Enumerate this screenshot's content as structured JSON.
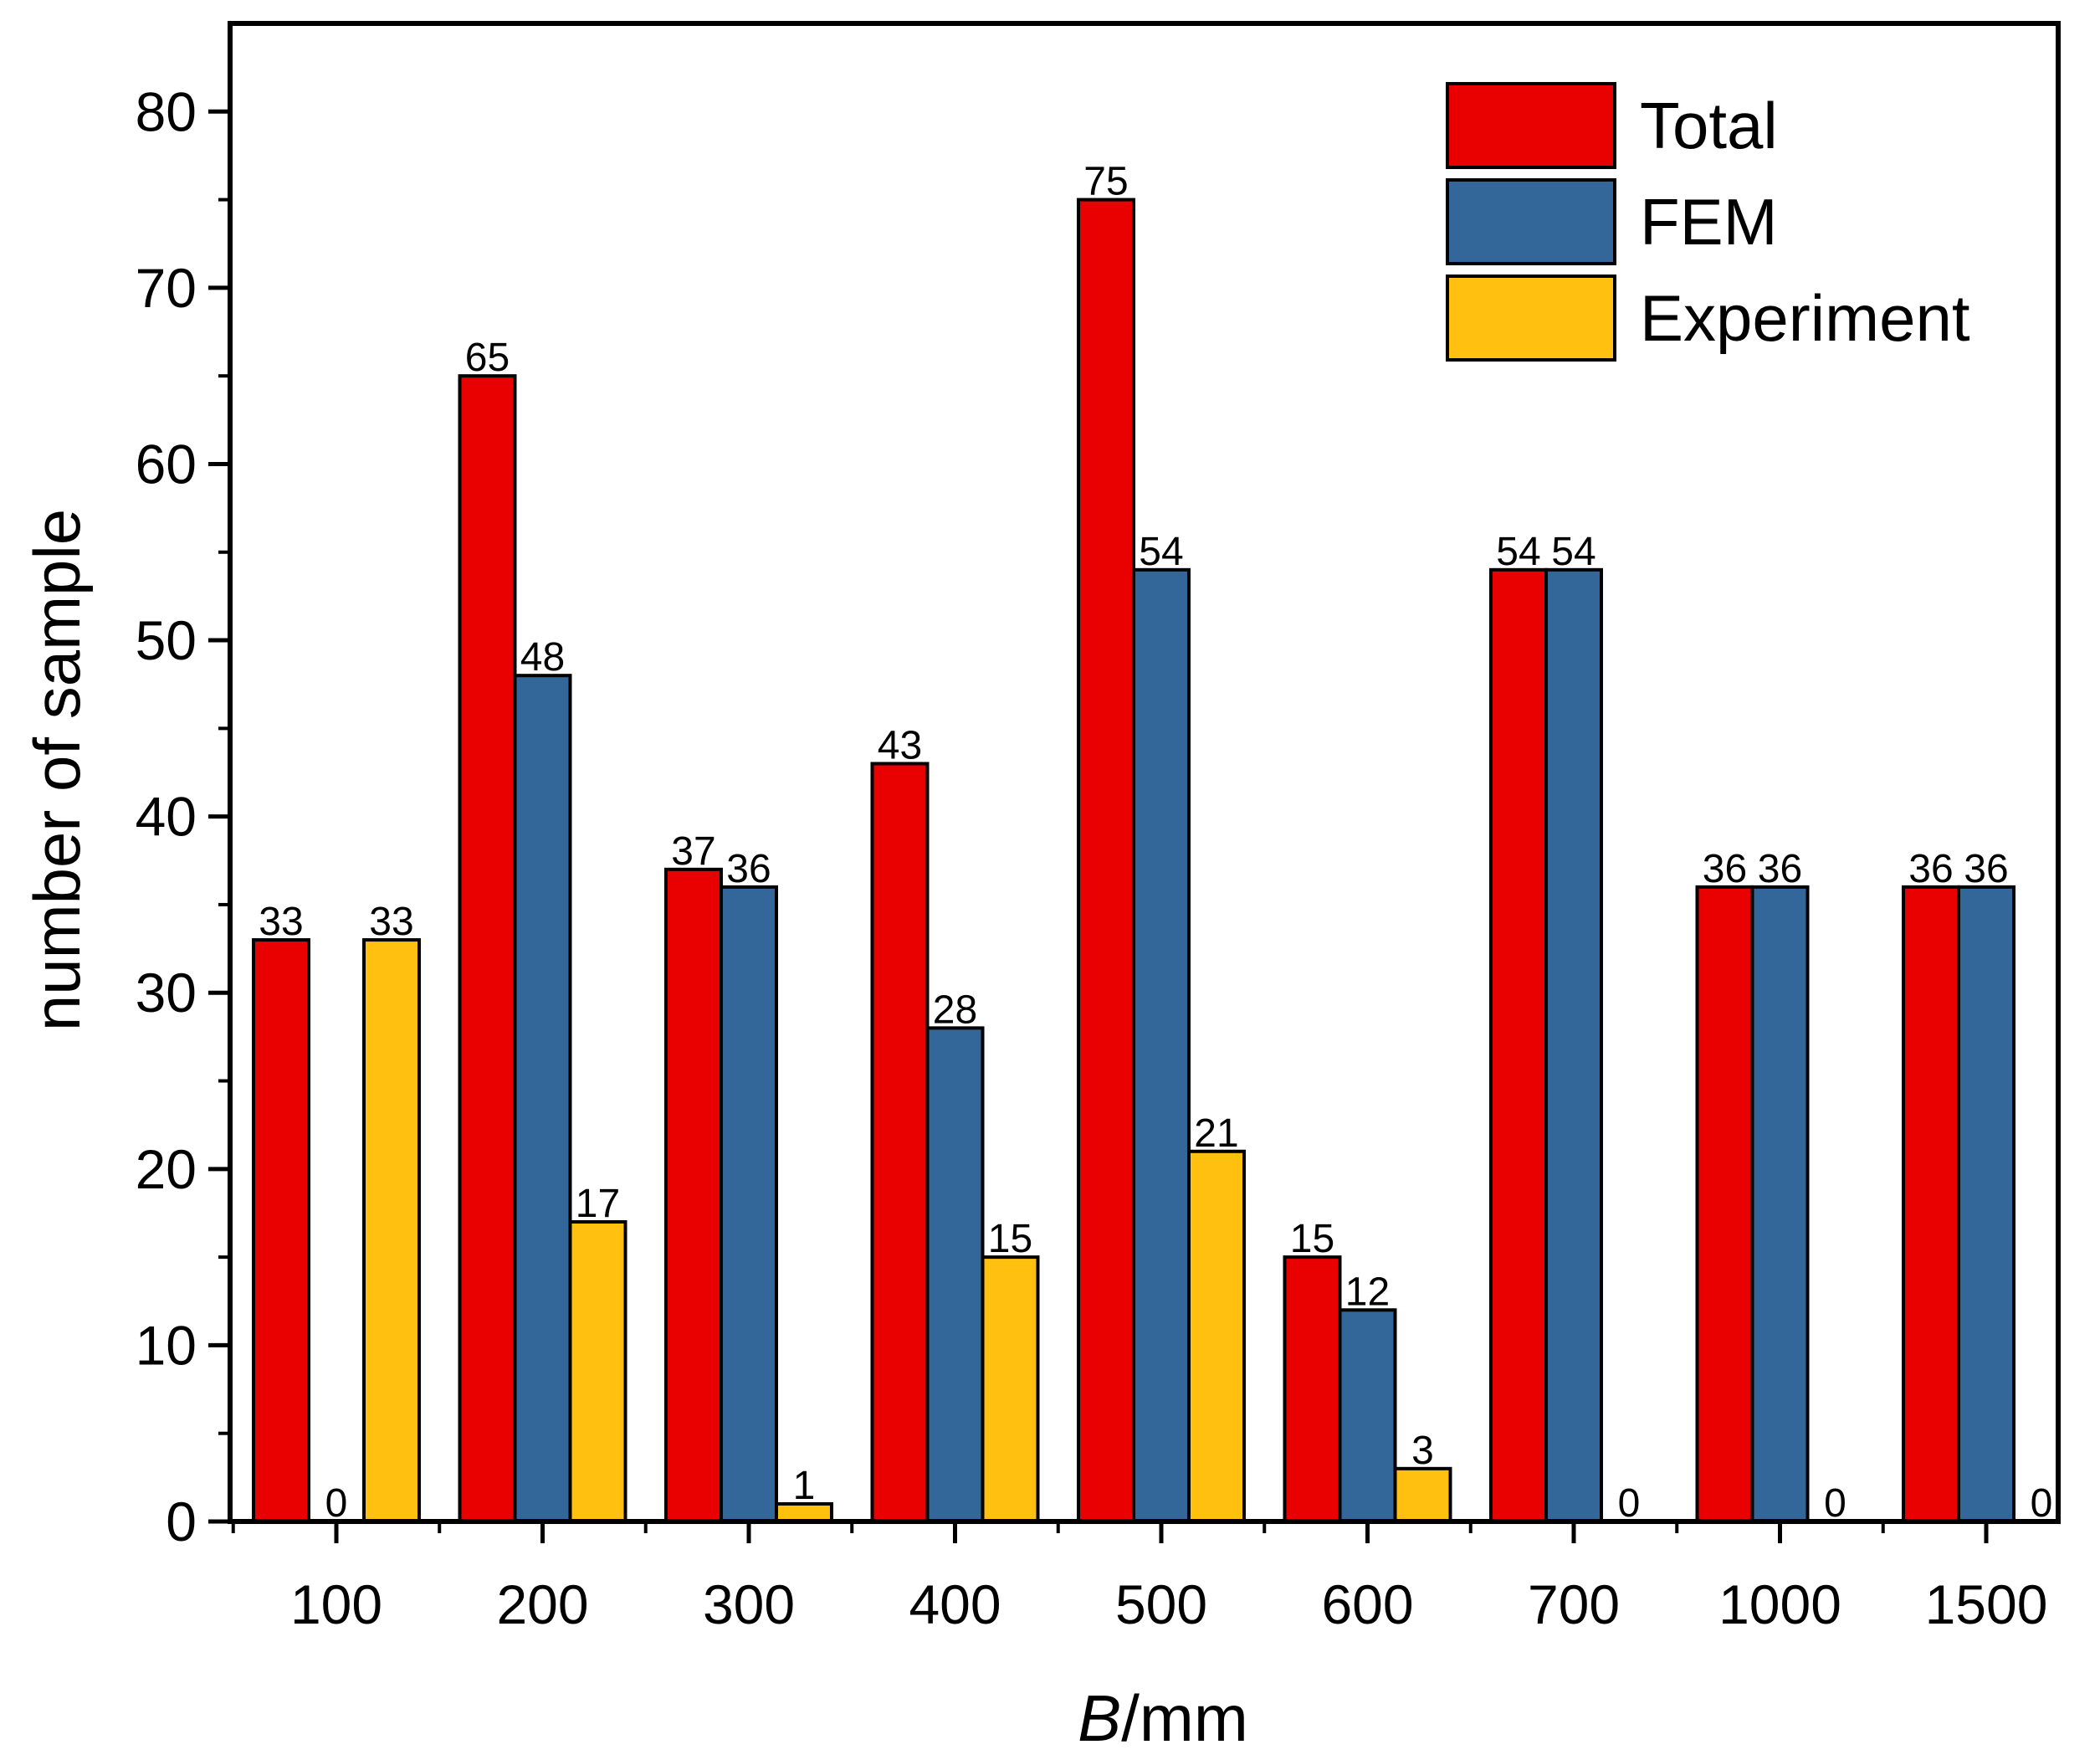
{
  "chart_data": {
    "type": "bar",
    "title": "",
    "xlabel": "B/mm",
    "xlabel_italic_part": "B",
    "xlabel_rest": "/mm",
    "ylabel": "number of sample",
    "ylim": [
      0,
      85
    ],
    "y_ticks": [
      0,
      10,
      20,
      30,
      40,
      50,
      60,
      70,
      80
    ],
    "categories": [
      "100",
      "200",
      "300",
      "400",
      "500",
      "600",
      "700",
      "1000",
      "1500"
    ],
    "series": [
      {
        "name": "Total",
        "color": "#e90000",
        "values": [
          33,
          65,
          37,
          43,
          75,
          15,
          54,
          36,
          36
        ]
      },
      {
        "name": "FEM",
        "color": "#336699",
        "values": [
          0,
          48,
          36,
          28,
          54,
          12,
          54,
          36,
          36
        ]
      },
      {
        "name": "Experiment",
        "color": "#ffc010",
        "values": [
          33,
          17,
          1,
          15,
          21,
          3,
          0,
          0,
          0
        ]
      }
    ],
    "visible_data_labels": {
      "Total": [
        33,
        65,
        37,
        43,
        75,
        15,
        54,
        36,
        36
      ],
      "FEM": [
        0,
        48,
        36,
        28,
        54,
        12,
        54,
        36,
        36
      ],
      "Experiment": [
        33,
        17,
        1,
        15,
        21,
        3,
        0,
        0,
        0
      ]
    },
    "legend_position": "top-right",
    "grid": false
  }
}
